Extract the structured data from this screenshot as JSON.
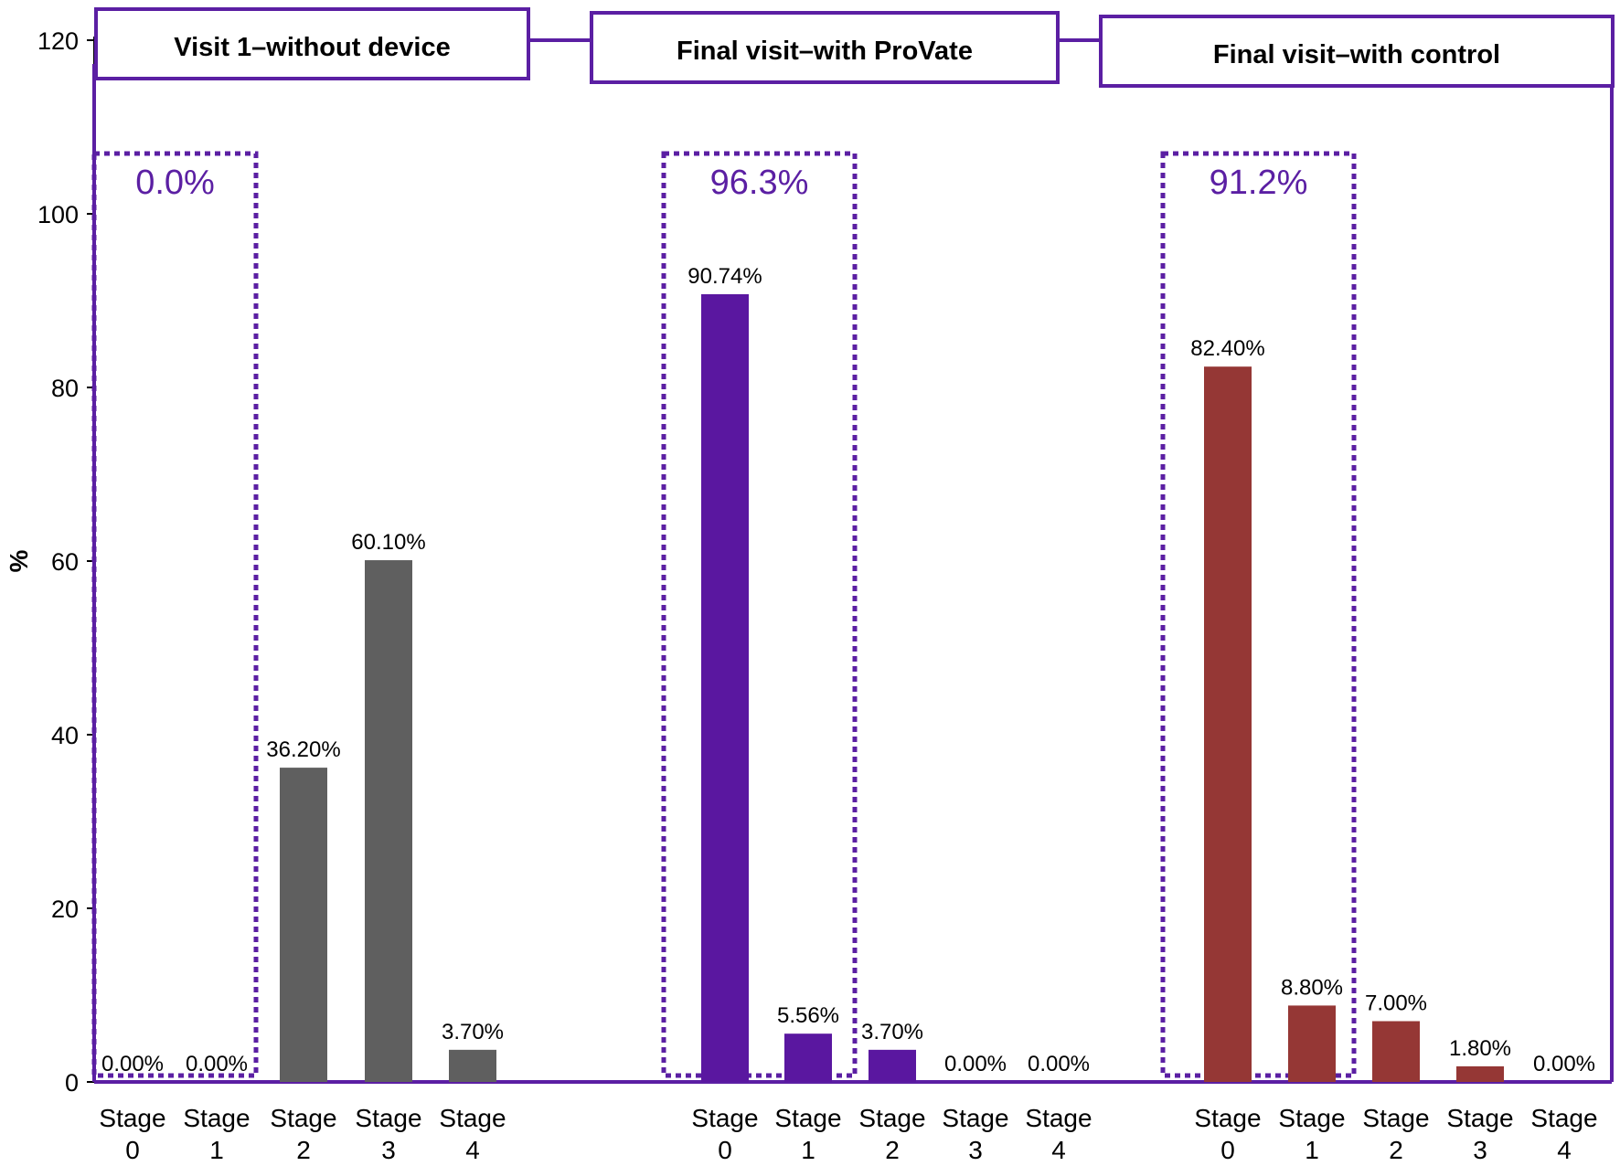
{
  "colors": {
    "frame": "#5b1fa3",
    "highlight": "#5b1fa3"
  },
  "chart_data": {
    "type": "bar",
    "ylabel": "%",
    "ylim": [
      0,
      120
    ],
    "yticks": [
      0,
      20,
      40,
      60,
      80,
      100,
      120
    ],
    "category_line1": "Stage",
    "categories": [
      "0",
      "1",
      "2",
      "3",
      "4"
    ],
    "series": [
      {
        "name": "Visit 1–without device",
        "color": "#5f5f5f",
        "values": [
          0.0,
          0.0,
          36.2,
          60.1,
          3.7
        ],
        "labels": [
          "0.00%",
          "0.00%",
          "36.20%",
          "60.10%",
          "3.70%"
        ],
        "highlight": "0.0%"
      },
      {
        "name": "Final visit–with ProVate",
        "color": "#5a17a0",
        "values": [
          90.74,
          5.56,
          3.7,
          0.0,
          0.0
        ],
        "labels": [
          "90.74%",
          "5.56%",
          "3.70%",
          "0.00%",
          "0.00%"
        ],
        "highlight": "96.3%"
      },
      {
        "name": "Final visit–with control",
        "color": "#953735",
        "values": [
          82.4,
          8.8,
          7.0,
          1.8,
          0.0
        ],
        "labels": [
          "82.40%",
          "8.80%",
          "7.00%",
          "1.80%",
          "0.00%"
        ],
        "highlight": "91.2%"
      }
    ]
  }
}
